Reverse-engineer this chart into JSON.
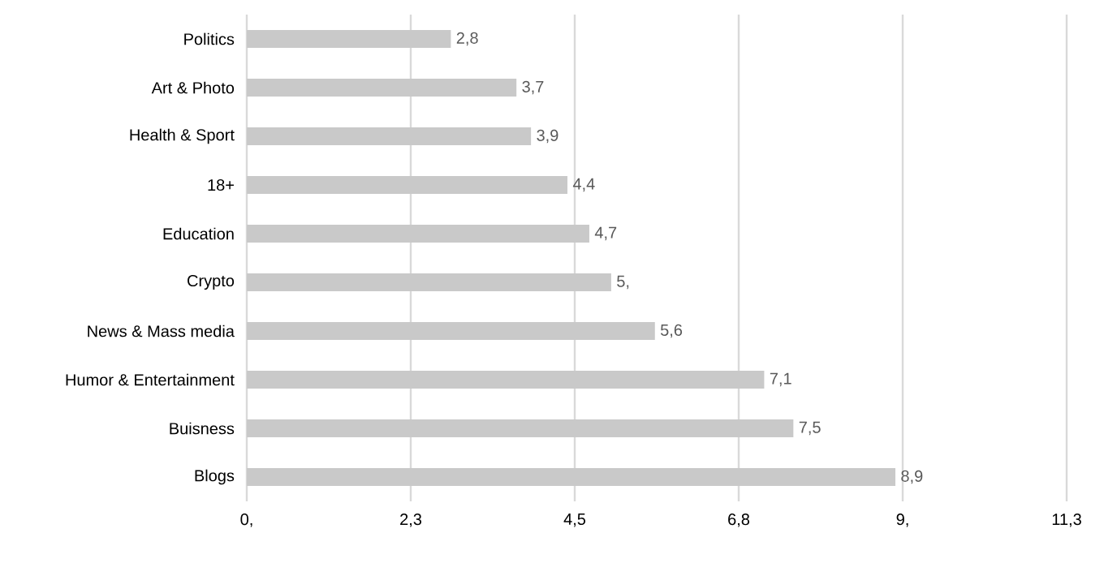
{
  "chart_data": {
    "type": "bar",
    "orientation": "horizontal",
    "categories": [
      "Politics",
      "Art & Photo",
      "Health & Sport",
      "18+",
      "Education",
      "Crypto",
      "News & Mass media",
      "Humor & Entertainment",
      "Buisness",
      "Blogs"
    ],
    "values": [
      2.8,
      3.7,
      3.9,
      4.4,
      4.7,
      5,
      5.6,
      7.1,
      7.5,
      8.9
    ],
    "value_labels": [
      "2,8",
      "3,7",
      "3,9",
      "4,4",
      "4,7",
      "5,",
      "5,6",
      "7,1",
      "7,5",
      "8,9"
    ],
    "color": "#c9c9c9",
    "xlim": [
      0,
      11.25
    ],
    "xticks": [
      {
        "value": 0,
        "label": "0,"
      },
      {
        "value": 2.25,
        "label": "2,3"
      },
      {
        "value": 4.5,
        "label": "4,5"
      },
      {
        "value": 6.75,
        "label": "6,8"
      },
      {
        "value": 9,
        "label": "9,"
      },
      {
        "value": 11.25,
        "label": "11,3"
      }
    ],
    "grid": "x"
  }
}
